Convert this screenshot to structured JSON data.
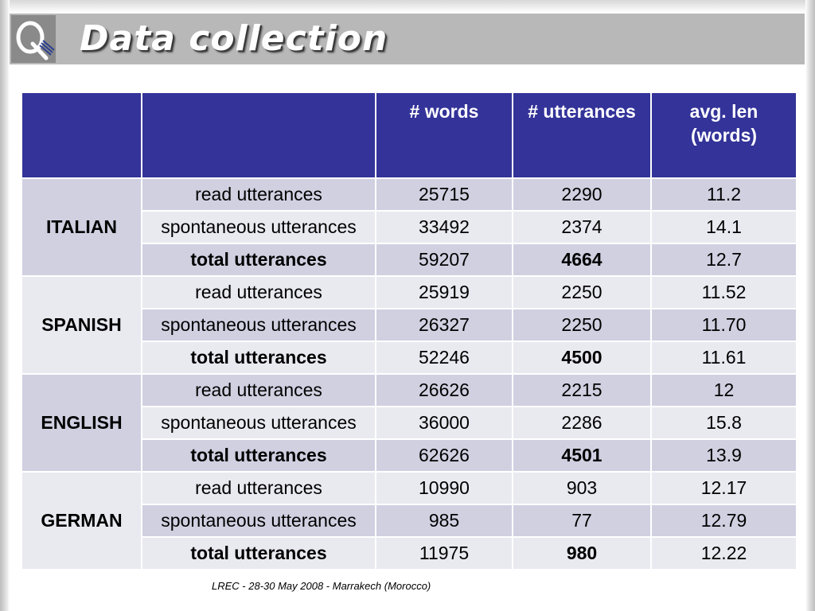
{
  "title": "Data collection",
  "logo": {
    "letter": "Q"
  },
  "table": {
    "headers": [
      "",
      "",
      "# words",
      "# utterances",
      "avg. len\n(words)"
    ],
    "groups": [
      {
        "language": "ITALIAN",
        "rows": [
          {
            "label": "read utterances",
            "words": "25715",
            "utterances": "2290",
            "avg": "11.2"
          },
          {
            "label": "spontaneous utterances",
            "words": "33492",
            "utterances": "2374",
            "avg": "14.1"
          },
          {
            "label": "total utterances",
            "words": "59207",
            "utterances": "4664",
            "avg": "12.7"
          }
        ]
      },
      {
        "language": "SPANISH",
        "rows": [
          {
            "label": "read utterances",
            "words": "25919",
            "utterances": "2250",
            "avg": "11.52"
          },
          {
            "label": "spontaneous utterances",
            "words": "26327",
            "utterances": "2250",
            "avg": "11.70"
          },
          {
            "label": "total utterances",
            "words": "52246",
            "utterances": "4500",
            "avg": "11.61"
          }
        ]
      },
      {
        "language": "ENGLISH",
        "rows": [
          {
            "label": "read utterances",
            "words": "26626",
            "utterances": "2215",
            "avg": "12"
          },
          {
            "label": "spontaneous utterances",
            "words": "36000",
            "utterances": "2286",
            "avg": "15.8"
          },
          {
            "label": "total utterances",
            "words": "62626",
            "utterances": "4501",
            "avg": "13.9"
          }
        ]
      },
      {
        "language": "GERMAN",
        "rows": [
          {
            "label": "read utterances",
            "words": "10990",
            "utterances": "903",
            "avg": "12.17"
          },
          {
            "label": "spontaneous utterances",
            "words": "985",
            "utterances": "77",
            "avg": "12.79"
          },
          {
            "label": "total utterances",
            "words": "11975",
            "utterances": "980",
            "avg": "12.22"
          }
        ]
      }
    ]
  },
  "footer": "LREC -  28-30 May 2008 - Marrakech (Morocco)"
}
